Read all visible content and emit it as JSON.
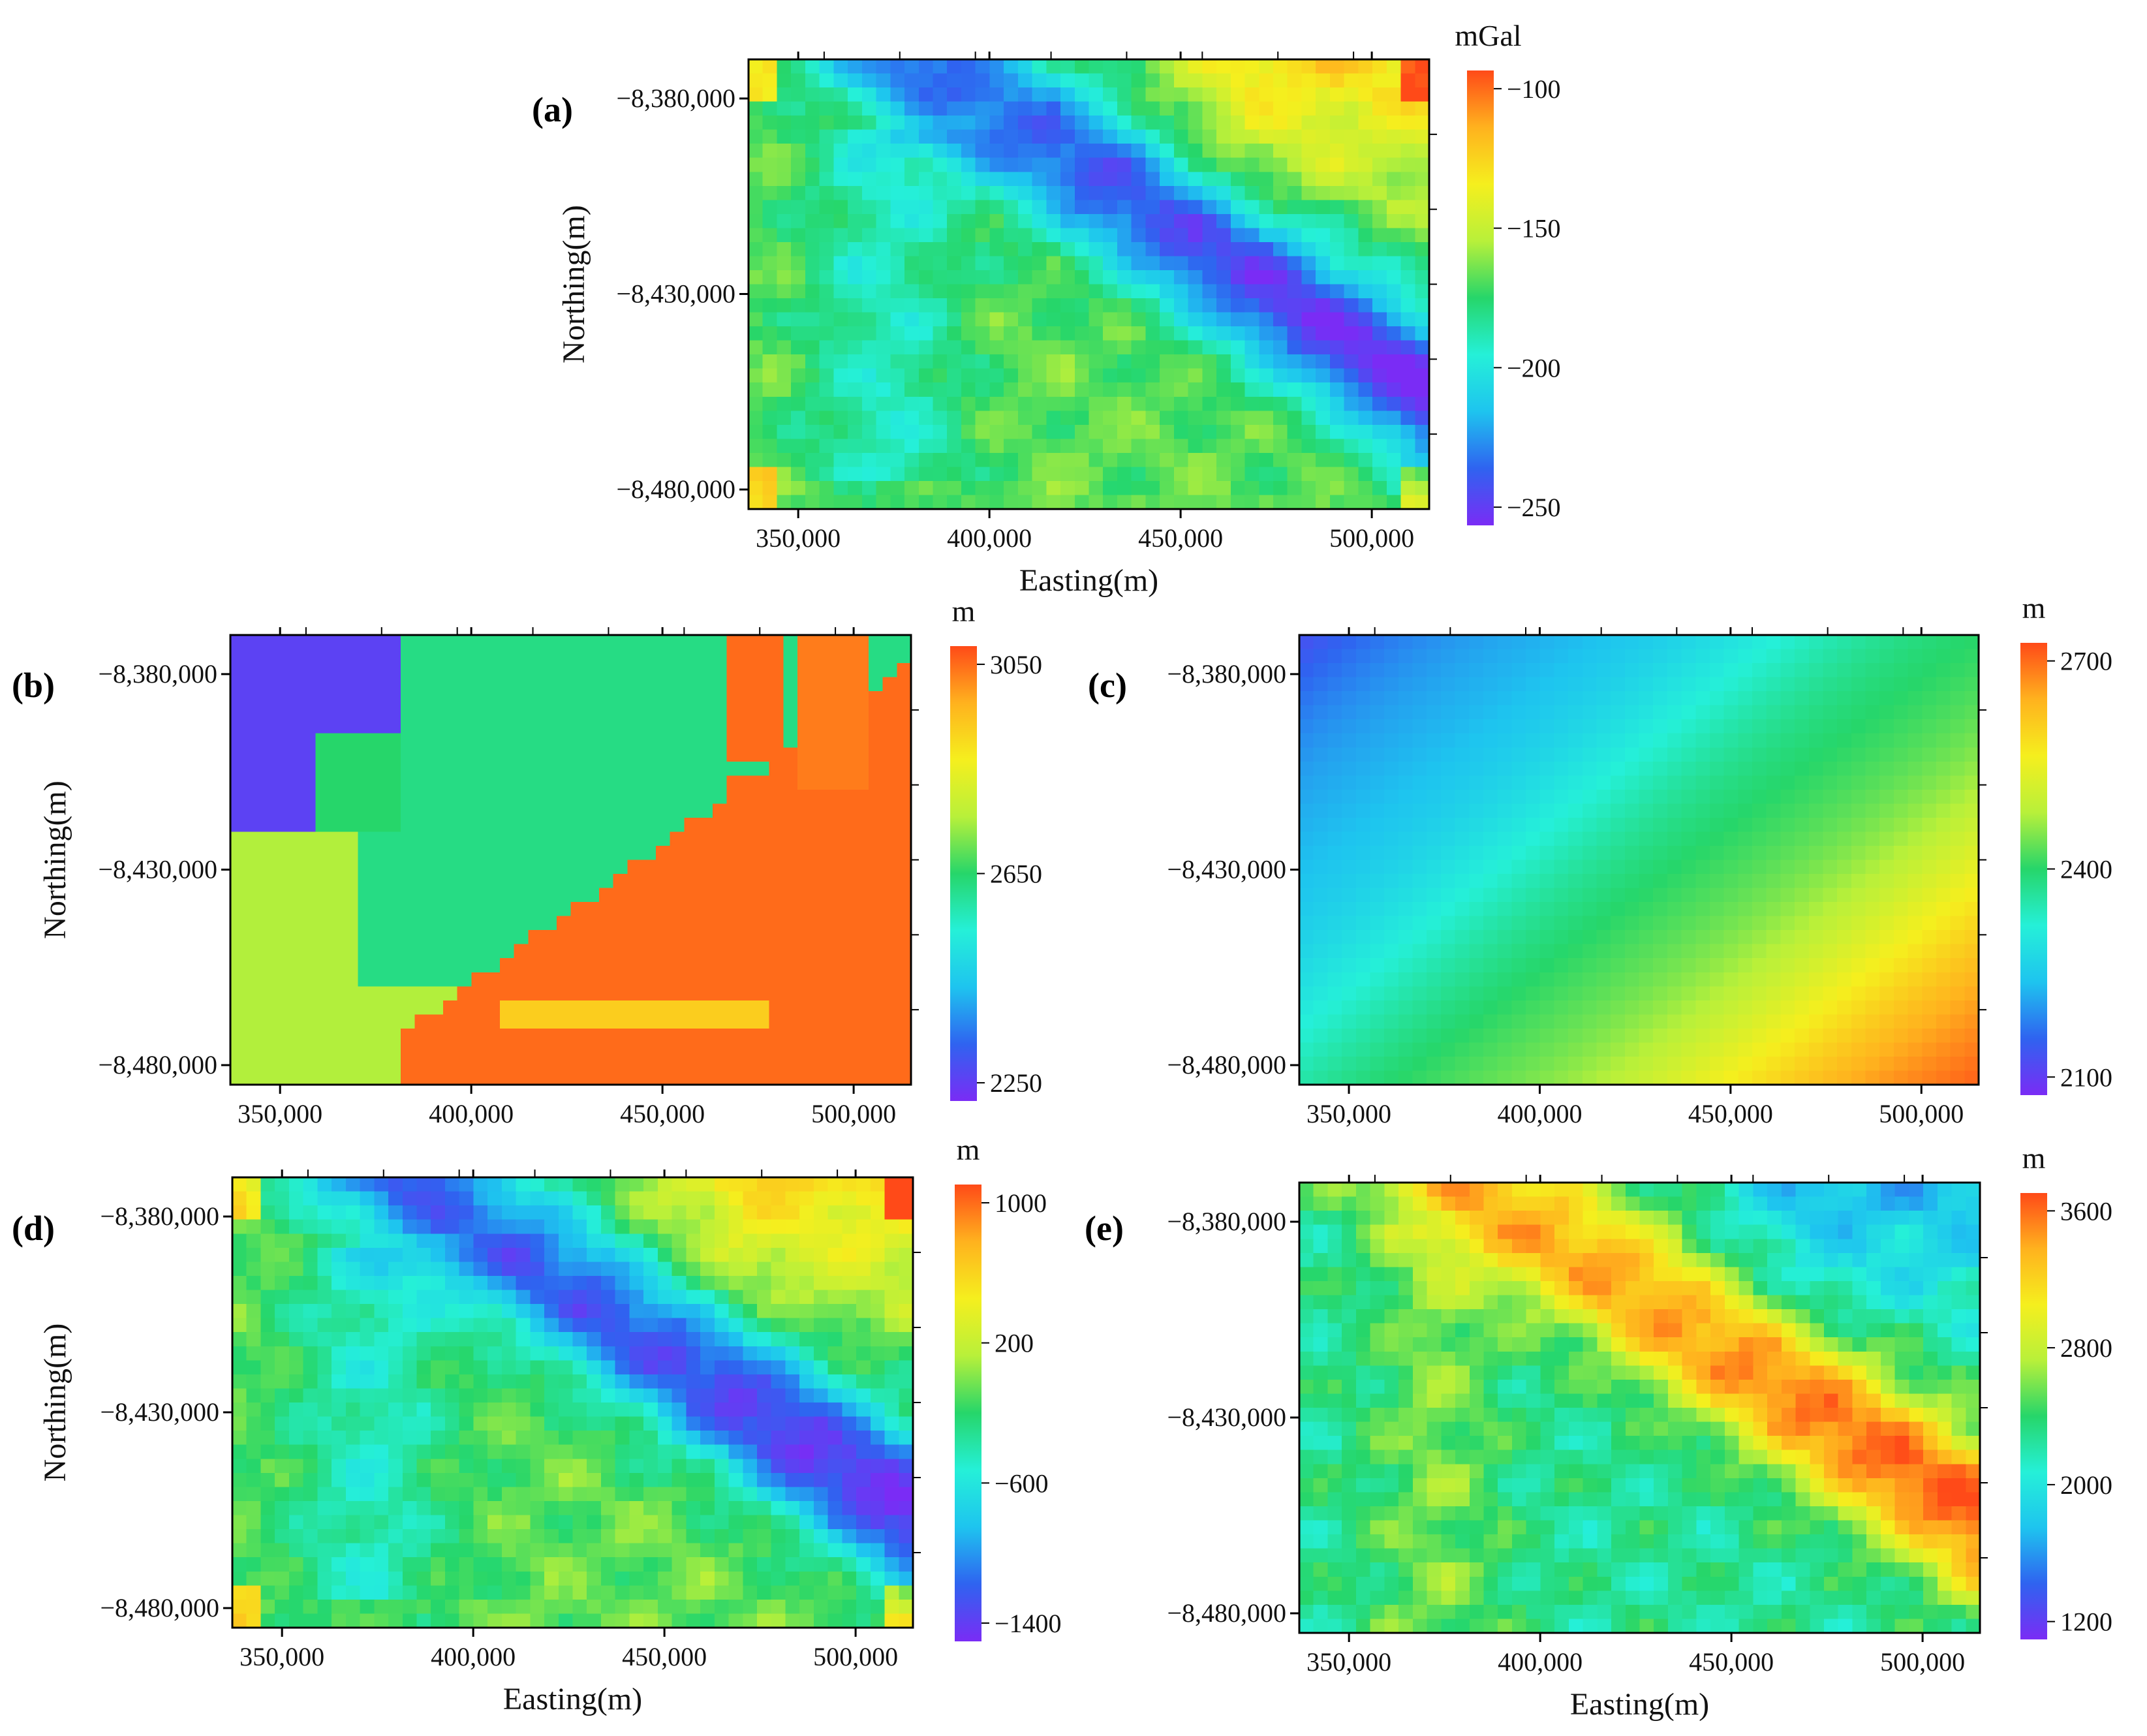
{
  "chart_data": [
    {
      "type": "heatmap",
      "id": "a",
      "panel_label": "(a)",
      "unit": "mGal",
      "colorbar_ticks": [
        "-100",
        "-150",
        "-200",
        "-250"
      ],
      "colorbar_range": [
        -250,
        -100
      ],
      "x_ticks": [
        "350,000",
        "400,000",
        "450,000",
        "500,000"
      ],
      "y_ticks": [
        "-8,380,000",
        "-8,430,000",
        "-8,480,000"
      ],
      "xlabel": "Easting(m)",
      "ylabel": "Northing(m)",
      "pattern": "nw-se low trough"
    },
    {
      "type": "heatmap",
      "id": "b",
      "panel_label": "(b)",
      "unit": "m",
      "colorbar_ticks": [
        "3050",
        "2650",
        "2250"
      ],
      "colorbar_range": [
        2250,
        3050
      ],
      "x_ticks": [
        "350,000",
        "400,000",
        "450,000",
        "500,000"
      ],
      "y_ticks": [
        "-8,380,000",
        "-8,430,000",
        "-8,480,000"
      ],
      "xlabel": "",
      "ylabel": "Northing(m)",
      "pattern": "blocky high in south-east"
    },
    {
      "type": "heatmap",
      "id": "c",
      "panel_label": "(c)",
      "unit": "m",
      "colorbar_ticks": [
        "2700",
        "2400",
        "2100"
      ],
      "colorbar_range": [
        2100,
        2700
      ],
      "x_ticks": [
        "350,000",
        "400,000",
        "450,000",
        "500,000"
      ],
      "y_ticks": [
        "-8,380,000",
        "-8,430,000",
        "-8,480,000"
      ],
      "xlabel": "",
      "ylabel": "",
      "pattern": "smooth gradient low NW to high SE"
    },
    {
      "type": "heatmap",
      "id": "d",
      "panel_label": "(d)",
      "unit": "m",
      "colorbar_ticks": [
        "1000",
        "200",
        "-600",
        "-1400"
      ],
      "colorbar_range": [
        -1400,
        1000
      ],
      "x_ticks": [
        "350,000",
        "400,000",
        "450,000",
        "500,000"
      ],
      "y_ticks": [
        "-8,380,000",
        "-8,430,000",
        "-8,480,000"
      ],
      "xlabel": "Easting(m)",
      "ylabel": "Northing(m)",
      "pattern": "nw-se low trough"
    },
    {
      "type": "heatmap",
      "id": "e",
      "panel_label": "(e)",
      "unit": "m",
      "colorbar_ticks": [
        "3600",
        "2800",
        "2000",
        "1200"
      ],
      "colorbar_range": [
        1200,
        3600
      ],
      "x_ticks": [
        "350,000",
        "400,000",
        "450,000",
        "500,000"
      ],
      "y_ticks": [
        "-8,380,000",
        "-8,430,000",
        "-8,480,000"
      ],
      "xlabel": "Easting(m)",
      "ylabel": "",
      "pattern": "nw-se high ridge"
    }
  ],
  "colors": {
    "ramp": [
      "#7a2cf5",
      "#2f63f0",
      "#1ec4ef",
      "#25f0d8",
      "#26d66a",
      "#b8f03a",
      "#f5ef1e",
      "#ffb21e",
      "#ff4a18"
    ]
  }
}
